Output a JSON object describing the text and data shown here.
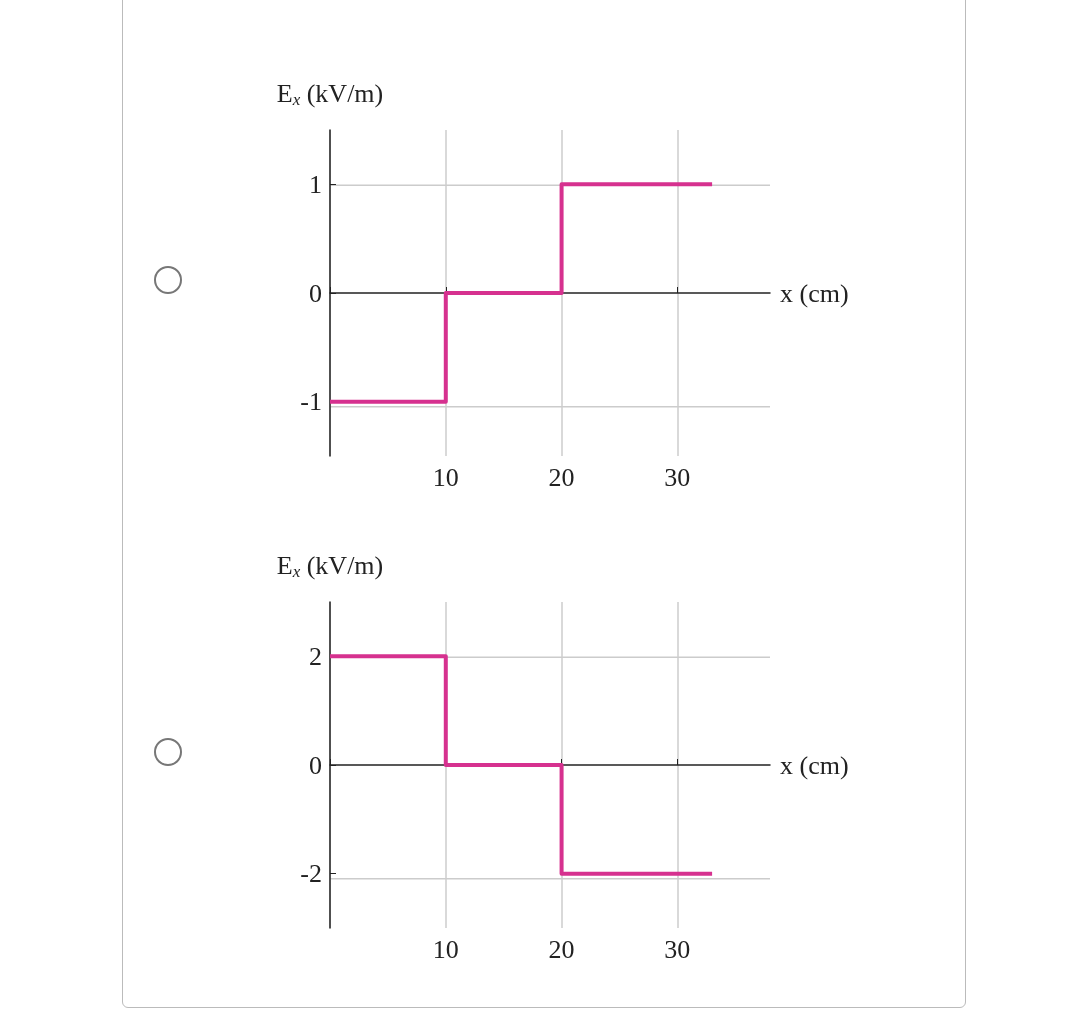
{
  "chart_data": [
    {
      "type": "step",
      "xlabel": "x (cm)",
      "ylabel": "E$_{x}$ (kV/m)",
      "x": [
        0,
        10,
        20,
        33
      ],
      "values": [
        -1,
        0,
        1,
        1
      ],
      "color": "#d6318f",
      "xlim": [
        0,
        38
      ],
      "xticks": [
        {
          "value": 0,
          "label": null
        },
        10,
        20,
        30
      ],
      "ylim": [
        -1.5,
        1.5
      ],
      "yticks": [
        -1,
        0,
        1
      ],
      "grid": true,
      "marker": "none",
      "line_style": "solid"
    },
    {
      "type": "step",
      "xlabel": "x (cm)",
      "ylabel": "E$_{x}$ (kV/m)",
      "x": [
        0,
        10,
        20,
        33
      ],
      "values": [
        2,
        0,
        -2,
        -2
      ],
      "color": "#d6318f",
      "xlim": [
        0,
        38
      ],
      "xticks": [
        {
          "value": 0,
          "label": null
        },
        10,
        20,
        30
      ],
      "ylim": [
        -3,
        3
      ],
      "yticks": [
        -2,
        0,
        2
      ],
      "grid": true,
      "marker": "none",
      "line_style": "solid"
    }
  ]
}
